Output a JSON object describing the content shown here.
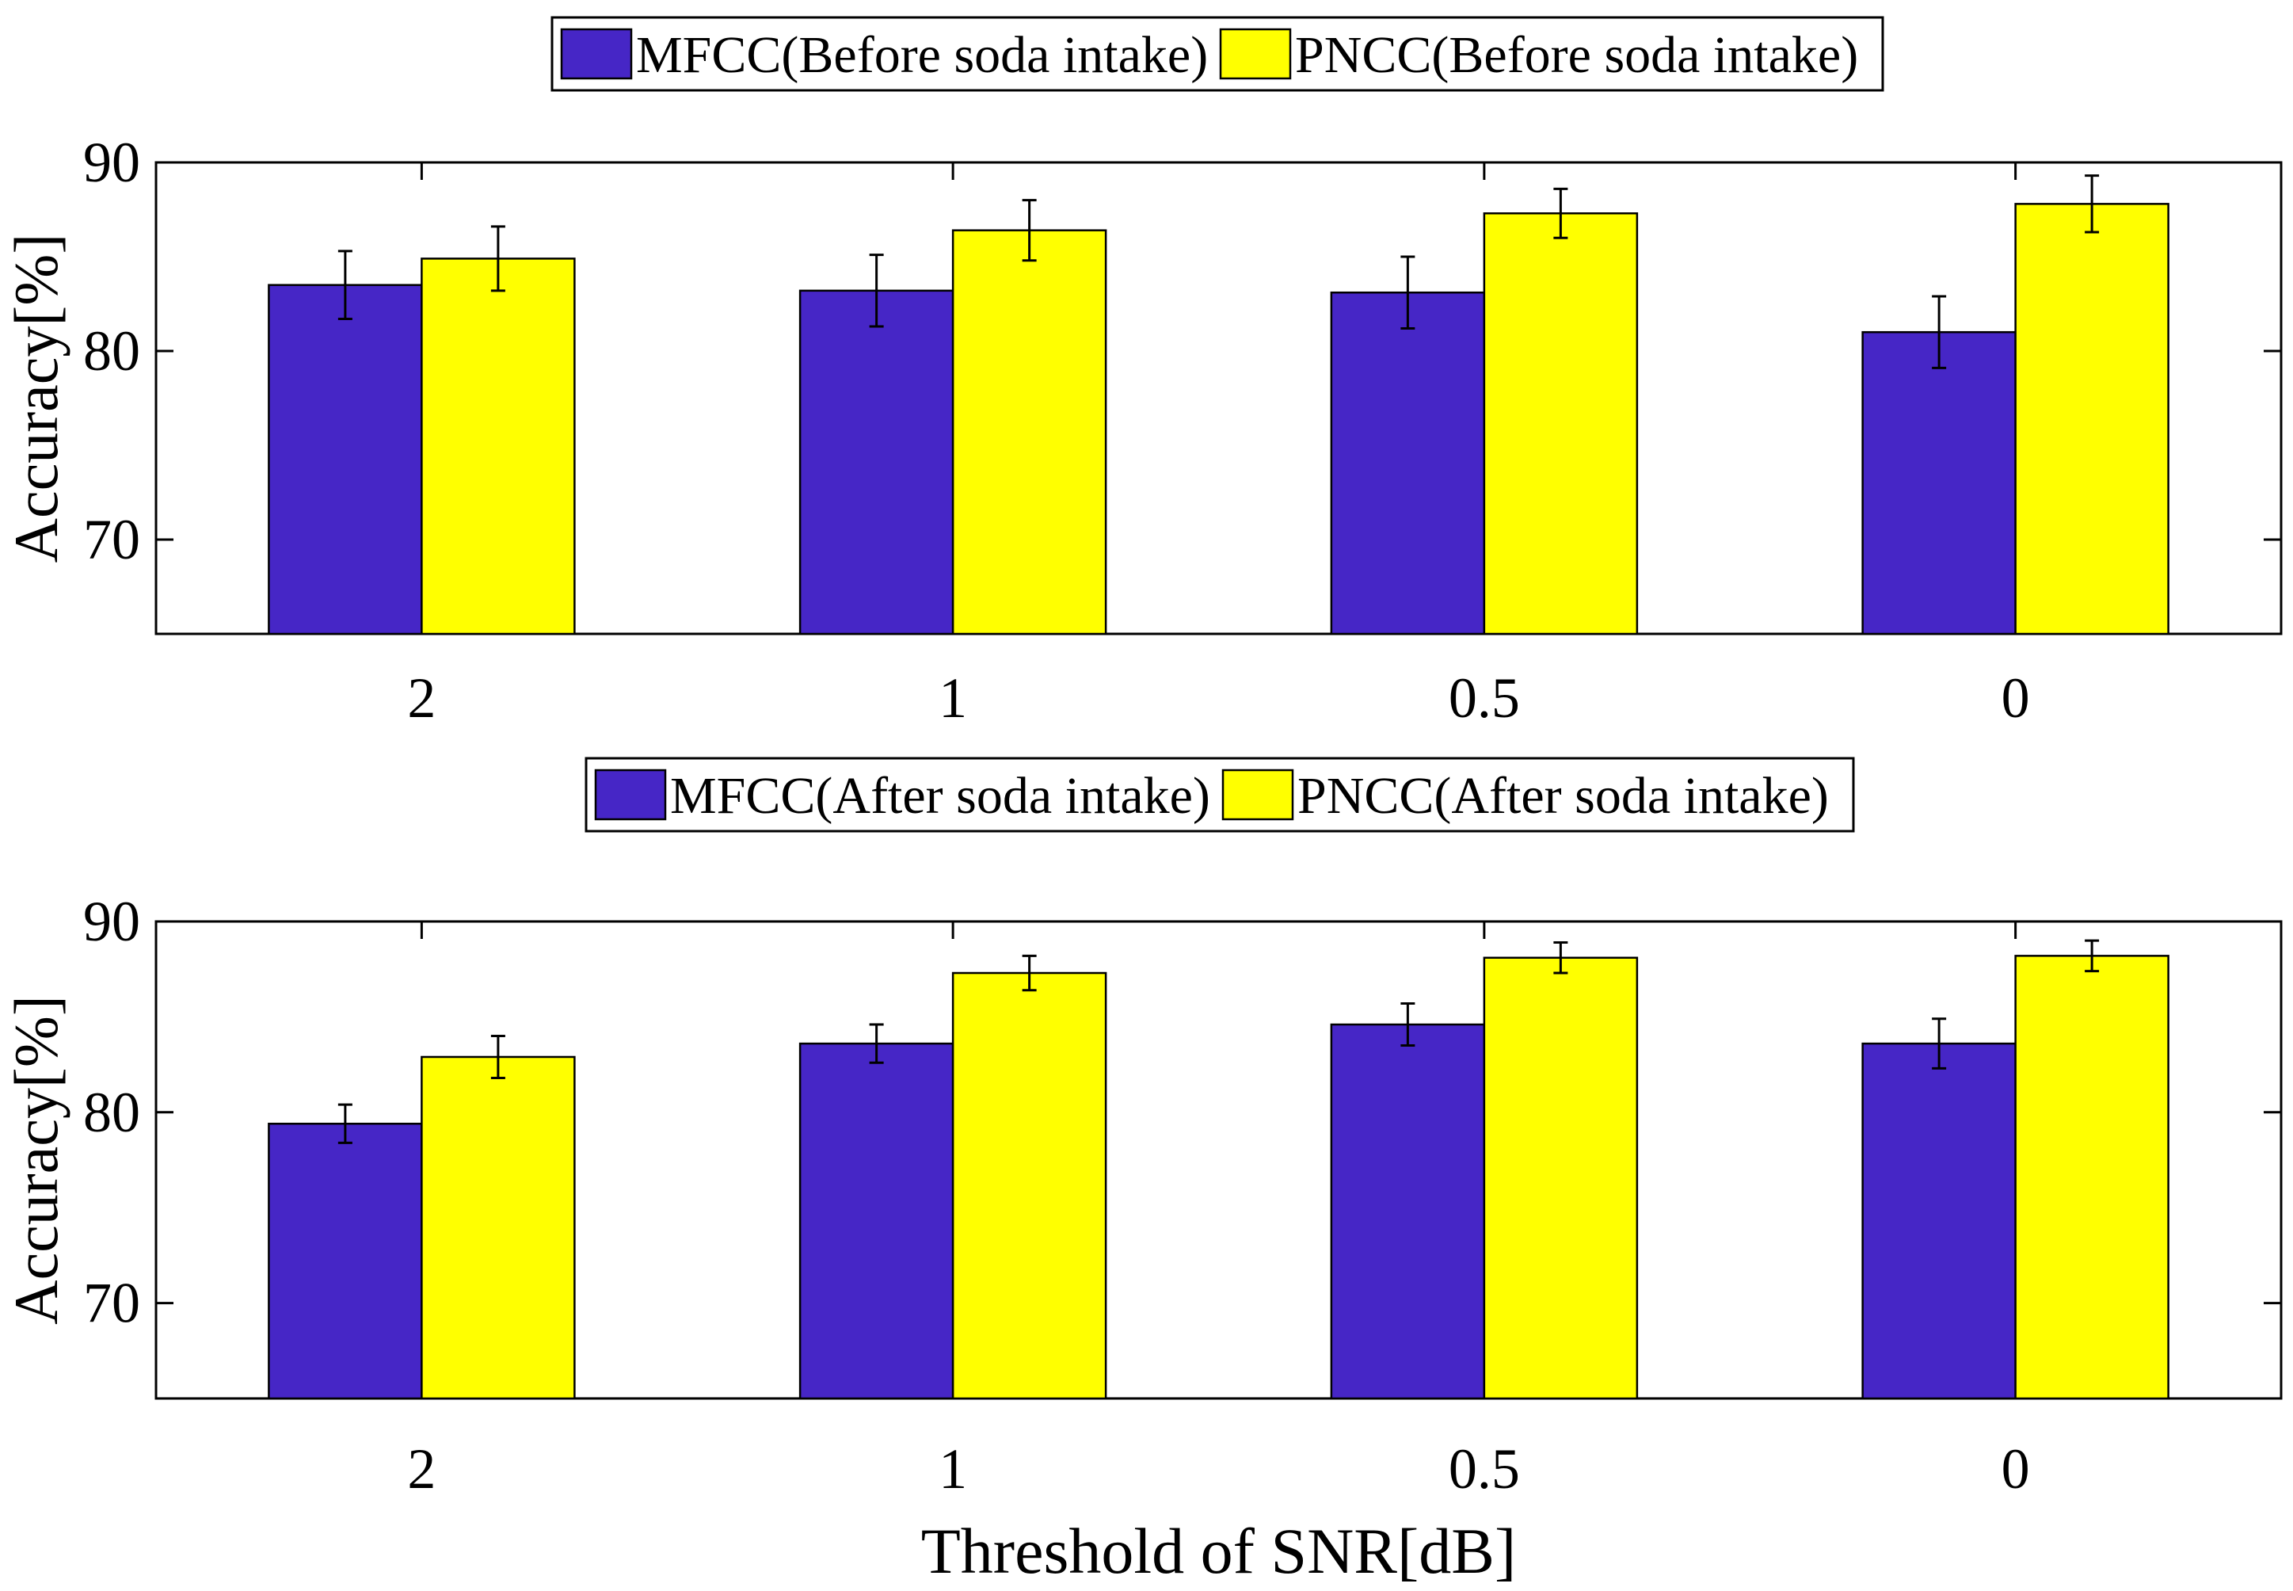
{
  "colors": {
    "mfcc": "#4626C6",
    "pncc": "#FFFF00",
    "axis": "#000000",
    "background": "#ffffff"
  },
  "chart_data": [
    {
      "type": "bar",
      "categories": [
        "2",
        "1",
        "0.5",
        "0"
      ],
      "series": [
        {
          "name": "MFCC(Before soda intake)",
          "values": [
            83.5,
            83.2,
            83.1,
            81.0
          ],
          "errors": [
            1.8,
            1.9,
            1.9,
            1.9
          ]
        },
        {
          "name": "PNCC(Before soda intake)",
          "values": [
            84.9,
            86.4,
            87.3,
            87.8
          ],
          "errors": [
            1.7,
            1.6,
            1.3,
            1.5
          ]
        }
      ],
      "ylabel": "Accuracy[%]",
      "xlabel": "",
      "ylim": [
        65,
        90
      ],
      "yticks": [
        70,
        80,
        90
      ],
      "legend_position": "top-center",
      "grid": false
    },
    {
      "type": "bar",
      "categories": [
        "2",
        "1",
        "0.5",
        "0"
      ],
      "series": [
        {
          "name": "MFCC(After soda intake)",
          "values": [
            79.4,
            83.6,
            84.6,
            83.6
          ],
          "errors": [
            1.0,
            1.0,
            1.1,
            1.3
          ]
        },
        {
          "name": "PNCC(After soda intake)",
          "values": [
            82.9,
            87.3,
            88.1,
            88.2
          ],
          "errors": [
            1.1,
            0.9,
            0.8,
            0.8
          ]
        }
      ],
      "ylabel": "Accuracy[%]",
      "xlabel": "Threshold of SNR[dB]",
      "ylim": [
        65,
        90
      ],
      "yticks": [
        70,
        80,
        90
      ],
      "legend_position": "top-center",
      "grid": false
    }
  ]
}
